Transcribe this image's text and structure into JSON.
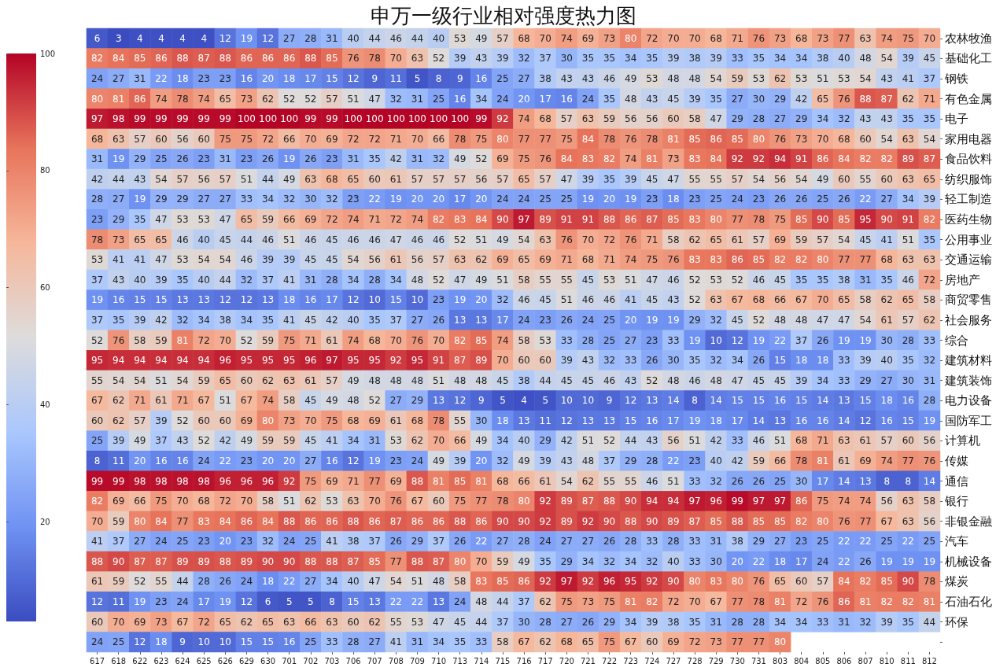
{
  "chart_data": {
    "type": "heatmap",
    "title": "申万一级行业相对强度热力图",
    "data_labels": true,
    "clim": [
      3,
      100
    ],
    "cticks": [
      20,
      40,
      60,
      80,
      100
    ],
    "categories": [
      "617",
      "618",
      "622",
      "623",
      "624",
      "625",
      "626",
      "629",
      "630",
      "701",
      "702",
      "703",
      "706",
      "707",
      "708",
      "709",
      "710",
      "713",
      "714",
      "715",
      "716",
      "717",
      "720",
      "721",
      "722",
      "723",
      "724",
      "727",
      "728",
      "729",
      "730",
      "731",
      "803",
      "804",
      "805",
      "806",
      "807",
      "810",
      "811",
      "812"
    ],
    "y_categories": [
      "农林牧渔",
      "基础化工",
      "钢铁",
      "有色金属",
      "电子",
      "家用电器",
      "食品饮料",
      "纺织服饰",
      "轻工制造",
      "医药生物",
      "公用事业",
      "交通运输",
      "房地产",
      "商贸零售",
      "社会服务",
      "综合",
      "建筑材料",
      "建筑装饰",
      "电力设备",
      "国防军工",
      "计算机",
      "传媒",
      "通信",
      "银行",
      "非银金融",
      "汽车",
      "机械设备",
      "煤炭",
      "石油石化",
      "环保",
      null
    ],
    "cells": [
      [
        6,
        3,
        4,
        4,
        4,
        4,
        12,
        19,
        12,
        27,
        28,
        31,
        40,
        44,
        46,
        44,
        40,
        53,
        49,
        57,
        68,
        70,
        74,
        69,
        73,
        80,
        72,
        70,
        70,
        68,
        71,
        76,
        73,
        68,
        73,
        77,
        63,
        74,
        75,
        70
      ],
      [
        82,
        84,
        85,
        86,
        88,
        87,
        88,
        86,
        86,
        86,
        88,
        85,
        76,
        78,
        70,
        63,
        52,
        39,
        43,
        39,
        32,
        37,
        30,
        35,
        35,
        34,
        35,
        39,
        38,
        39,
        33,
        35,
        34,
        34,
        38,
        40,
        48,
        54,
        39,
        45
      ],
      [
        24,
        27,
        31,
        22,
        18,
        23,
        23,
        16,
        20,
        18,
        17,
        15,
        12,
        9,
        11,
        5,
        8,
        9,
        16,
        25,
        27,
        38,
        43,
        43,
        46,
        49,
        53,
        48,
        48,
        54,
        59,
        53,
        62,
        53,
        51,
        53,
        54,
        43,
        41,
        37
      ],
      [
        80,
        81,
        86,
        74,
        78,
        74,
        65,
        73,
        62,
        52,
        52,
        57,
        51,
        47,
        32,
        31,
        25,
        16,
        34,
        24,
        20,
        17,
        16,
        24,
        35,
        48,
        43,
        45,
        39,
        35,
        27,
        30,
        29,
        42,
        65,
        76,
        88,
        87,
        62,
        71
      ],
      [
        97,
        98,
        99,
        99,
        99,
        99,
        99,
        100,
        100,
        100,
        99,
        99,
        100,
        100,
        100,
        100,
        100,
        100,
        99,
        92,
        74,
        68,
        57,
        63,
        59,
        56,
        56,
        60,
        58,
        47,
        29,
        28,
        27,
        29,
        34,
        32,
        43,
        43,
        35,
        35
      ],
      [
        68,
        63,
        57,
        60,
        56,
        60,
        75,
        75,
        72,
        66,
        70,
        69,
        72,
        72,
        71,
        70,
        66,
        78,
        75,
        80,
        77,
        77,
        75,
        84,
        78,
        76,
        78,
        81,
        85,
        86,
        85,
        80,
        76,
        73,
        70,
        68,
        60,
        54,
        63,
        54
      ],
      [
        31,
        19,
        29,
        25,
        26,
        23,
        31,
        23,
        26,
        19,
        26,
        23,
        31,
        35,
        42,
        31,
        32,
        49,
        52,
        69,
        75,
        76,
        84,
        83,
        82,
        74,
        81,
        73,
        83,
        84,
        92,
        92,
        94,
        91,
        86,
        84,
        82,
        82,
        89,
        87
      ],
      [
        42,
        44,
        43,
        54,
        57,
        56,
        57,
        51,
        44,
        49,
        63,
        68,
        65,
        60,
        61,
        57,
        57,
        57,
        56,
        57,
        65,
        57,
        47,
        39,
        35,
        39,
        45,
        47,
        55,
        55,
        57,
        54,
        56,
        54,
        49,
        60,
        55,
        60,
        63,
        65
      ],
      [
        28,
        27,
        19,
        29,
        29,
        27,
        27,
        33,
        34,
        32,
        30,
        32,
        23,
        22,
        19,
        20,
        20,
        17,
        20,
        24,
        24,
        25,
        25,
        19,
        20,
        19,
        23,
        18,
        23,
        25,
        24,
        23,
        26,
        26,
        25,
        26,
        22,
        27,
        34,
        39
      ],
      [
        23,
        29,
        35,
        47,
        53,
        53,
        47,
        65,
        59,
        66,
        69,
        72,
        74,
        71,
        72,
        74,
        82,
        83,
        84,
        90,
        97,
        89,
        91,
        91,
        88,
        86,
        87,
        85,
        83,
        80,
        77,
        78,
        75,
        85,
        90,
        85,
        95,
        90,
        91,
        82
      ],
      [
        78,
        73,
        65,
        65,
        46,
        40,
        45,
        44,
        46,
        51,
        46,
        45,
        46,
        46,
        47,
        46,
        46,
        52,
        51,
        49,
        54,
        63,
        76,
        70,
        72,
        76,
        71,
        58,
        62,
        65,
        61,
        57,
        69,
        59,
        57,
        54,
        45,
        41,
        51,
        35
      ],
      [
        53,
        41,
        41,
        47,
        53,
        54,
        54,
        46,
        39,
        39,
        45,
        45,
        54,
        56,
        61,
        56,
        57,
        63,
        62,
        69,
        65,
        69,
        71,
        68,
        71,
        74,
        75,
        76,
        83,
        83,
        86,
        85,
        82,
        82,
        80,
        77,
        77,
        68,
        63,
        63
      ],
      [
        37,
        43,
        40,
        39,
        35,
        40,
        44,
        32,
        37,
        41,
        31,
        28,
        34,
        28,
        34,
        48,
        52,
        47,
        49,
        51,
        58,
        55,
        55,
        45,
        53,
        51,
        47,
        46,
        52,
        53,
        52,
        46,
        45,
        35,
        35,
        38,
        31,
        35,
        46,
        72
      ],
      [
        19,
        16,
        15,
        15,
        13,
        13,
        12,
        12,
        13,
        18,
        16,
        17,
        12,
        10,
        15,
        10,
        23,
        19,
        20,
        32,
        46,
        45,
        51,
        46,
        46,
        41,
        45,
        43,
        52,
        63,
        67,
        68,
        66,
        67,
        70,
        65,
        58,
        62,
        65,
        58
      ],
      [
        37,
        35,
        39,
        42,
        32,
        34,
        38,
        34,
        35,
        41,
        45,
        42,
        40,
        35,
        37,
        27,
        26,
        13,
        13,
        17,
        24,
        23,
        26,
        24,
        25,
        20,
        19,
        19,
        29,
        32,
        45,
        52,
        48,
        48,
        47,
        47,
        54,
        61,
        57,
        62
      ],
      [
        52,
        76,
        58,
        59,
        81,
        72,
        70,
        52,
        59,
        75,
        71,
        61,
        74,
        68,
        70,
        76,
        70,
        82,
        85,
        74,
        58,
        53,
        33,
        28,
        25,
        27,
        23,
        33,
        19,
        10,
        12,
        19,
        22,
        37,
        26,
        19,
        19,
        30,
        28,
        33
      ],
      [
        95,
        94,
        94,
        94,
        94,
        94,
        96,
        95,
        95,
        95,
        96,
        97,
        95,
        95,
        92,
        95,
        91,
        87,
        89,
        70,
        60,
        60,
        39,
        43,
        32,
        33,
        26,
        30,
        35,
        32,
        34,
        26,
        15,
        18,
        18,
        33,
        39,
        40,
        35,
        32
      ],
      [
        55,
        54,
        54,
        51,
        54,
        59,
        65,
        60,
        62,
        63,
        61,
        57,
        49,
        48,
        48,
        48,
        51,
        48,
        48,
        45,
        38,
        44,
        45,
        45,
        46,
        43,
        52,
        48,
        46,
        48,
        47,
        45,
        45,
        39,
        34,
        33,
        29,
        27,
        30,
        31
      ],
      [
        67,
        62,
        71,
        61,
        71,
        67,
        51,
        67,
        74,
        58,
        45,
        49,
        48,
        52,
        27,
        29,
        13,
        12,
        9,
        5,
        4,
        5,
        10,
        10,
        9,
        12,
        13,
        14,
        8,
        14,
        15,
        15,
        16,
        15,
        14,
        13,
        15,
        18,
        16,
        28
      ],
      [
        60,
        62,
        57,
        39,
        52,
        60,
        60,
        69,
        80,
        73,
        70,
        75,
        68,
        69,
        61,
        68,
        78,
        55,
        30,
        18,
        13,
        11,
        12,
        13,
        13,
        15,
        16,
        17,
        19,
        18,
        17,
        14,
        13,
        16,
        16,
        14,
        12,
        16,
        15,
        19
      ],
      [
        25,
        39,
        49,
        37,
        43,
        52,
        42,
        49,
        59,
        59,
        45,
        41,
        34,
        31,
        53,
        62,
        70,
        66,
        49,
        34,
        40,
        29,
        42,
        51,
        52,
        44,
        43,
        56,
        51,
        42,
        33,
        46,
        51,
        68,
        71,
        63,
        61,
        57,
        60,
        56
      ],
      [
        8,
        11,
        20,
        16,
        16,
        24,
        22,
        23,
        20,
        20,
        27,
        16,
        12,
        19,
        23,
        24,
        49,
        39,
        20,
        32,
        49,
        39,
        43,
        48,
        37,
        29,
        28,
        22,
        23,
        40,
        42,
        59,
        66,
        78,
        81,
        61,
        69,
        74,
        77,
        76
      ],
      [
        99,
        99,
        98,
        98,
        98,
        98,
        96,
        96,
        96,
        92,
        75,
        69,
        71,
        77,
        69,
        88,
        81,
        85,
        81,
        68,
        66,
        61,
        54,
        62,
        55,
        55,
        46,
        51,
        33,
        32,
        26,
        26,
        25,
        30,
        17,
        14,
        13,
        8,
        8,
        14
      ],
      [
        82,
        69,
        66,
        75,
        70,
        68,
        72,
        70,
        58,
        51,
        62,
        53,
        63,
        70,
        76,
        67,
        60,
        75,
        77,
        78,
        80,
        92,
        89,
        87,
        88,
        90,
        94,
        94,
        97,
        96,
        99,
        97,
        97,
        86,
        75,
        74,
        74,
        56,
        63,
        58
      ],
      [
        70,
        59,
        80,
        84,
        77,
        83,
        84,
        86,
        84,
        88,
        86,
        86,
        88,
        86,
        87,
        86,
        86,
        88,
        86,
        90,
        90,
        92,
        89,
        92,
        90,
        88,
        90,
        89,
        87,
        85,
        88,
        85,
        85,
        82,
        80,
        76,
        77,
        67,
        63,
        56
      ],
      [
        41,
        37,
        27,
        24,
        25,
        23,
        20,
        23,
        32,
        24,
        25,
        41,
        38,
        37,
        26,
        29,
        37,
        26,
        22,
        27,
        28,
        24,
        27,
        27,
        26,
        28,
        33,
        28,
        33,
        31,
        38,
        29,
        27,
        23,
        25,
        22,
        22,
        25,
        22,
        25
      ],
      [
        88,
        90,
        87,
        87,
        89,
        89,
        88,
        89,
        90,
        90,
        88,
        88,
        87,
        85,
        77,
        88,
        87,
        80,
        70,
        59,
        49,
        35,
        29,
        34,
        32,
        34,
        32,
        40,
        33,
        30,
        20,
        22,
        18,
        17,
        24,
        22,
        26,
        19,
        19,
        19
      ],
      [
        61,
        59,
        52,
        55,
        44,
        28,
        26,
        24,
        18,
        22,
        27,
        34,
        40,
        47,
        54,
        51,
        48,
        58,
        83,
        85,
        86,
        92,
        97,
        92,
        96,
        95,
        92,
        90,
        80,
        83,
        80,
        76,
        65,
        60,
        57,
        84,
        82,
        85,
        90,
        78
      ],
      [
        12,
        11,
        19,
        23,
        24,
        17,
        19,
        12,
        6,
        5,
        5,
        8,
        15,
        13,
        22,
        22,
        13,
        24,
        48,
        44,
        37,
        62,
        75,
        73,
        75,
        81,
        82,
        72,
        70,
        67,
        77,
        78,
        81,
        72,
        76,
        86,
        81,
        82,
        82,
        81
      ],
      [
        60,
        70,
        69,
        73,
        67,
        72,
        65,
        62,
        65,
        63,
        66,
        63,
        60,
        62,
        55,
        53,
        47,
        45,
        44,
        37,
        30,
        28,
        27,
        26,
        29,
        34,
        39,
        38,
        35,
        31,
        28,
        28,
        34,
        34,
        33,
        31,
        32,
        39,
        35,
        44
      ],
      [
        24,
        25,
        12,
        18,
        9,
        10,
        10,
        15,
        15,
        16,
        25,
        33,
        28,
        27,
        41,
        31,
        34,
        35,
        33,
        58,
        67,
        62,
        68,
        65,
        75,
        67,
        60,
        69,
        72,
        73,
        77,
        77,
        80,
        null,
        null,
        null,
        null,
        null,
        null,
        null
      ]
    ]
  }
}
